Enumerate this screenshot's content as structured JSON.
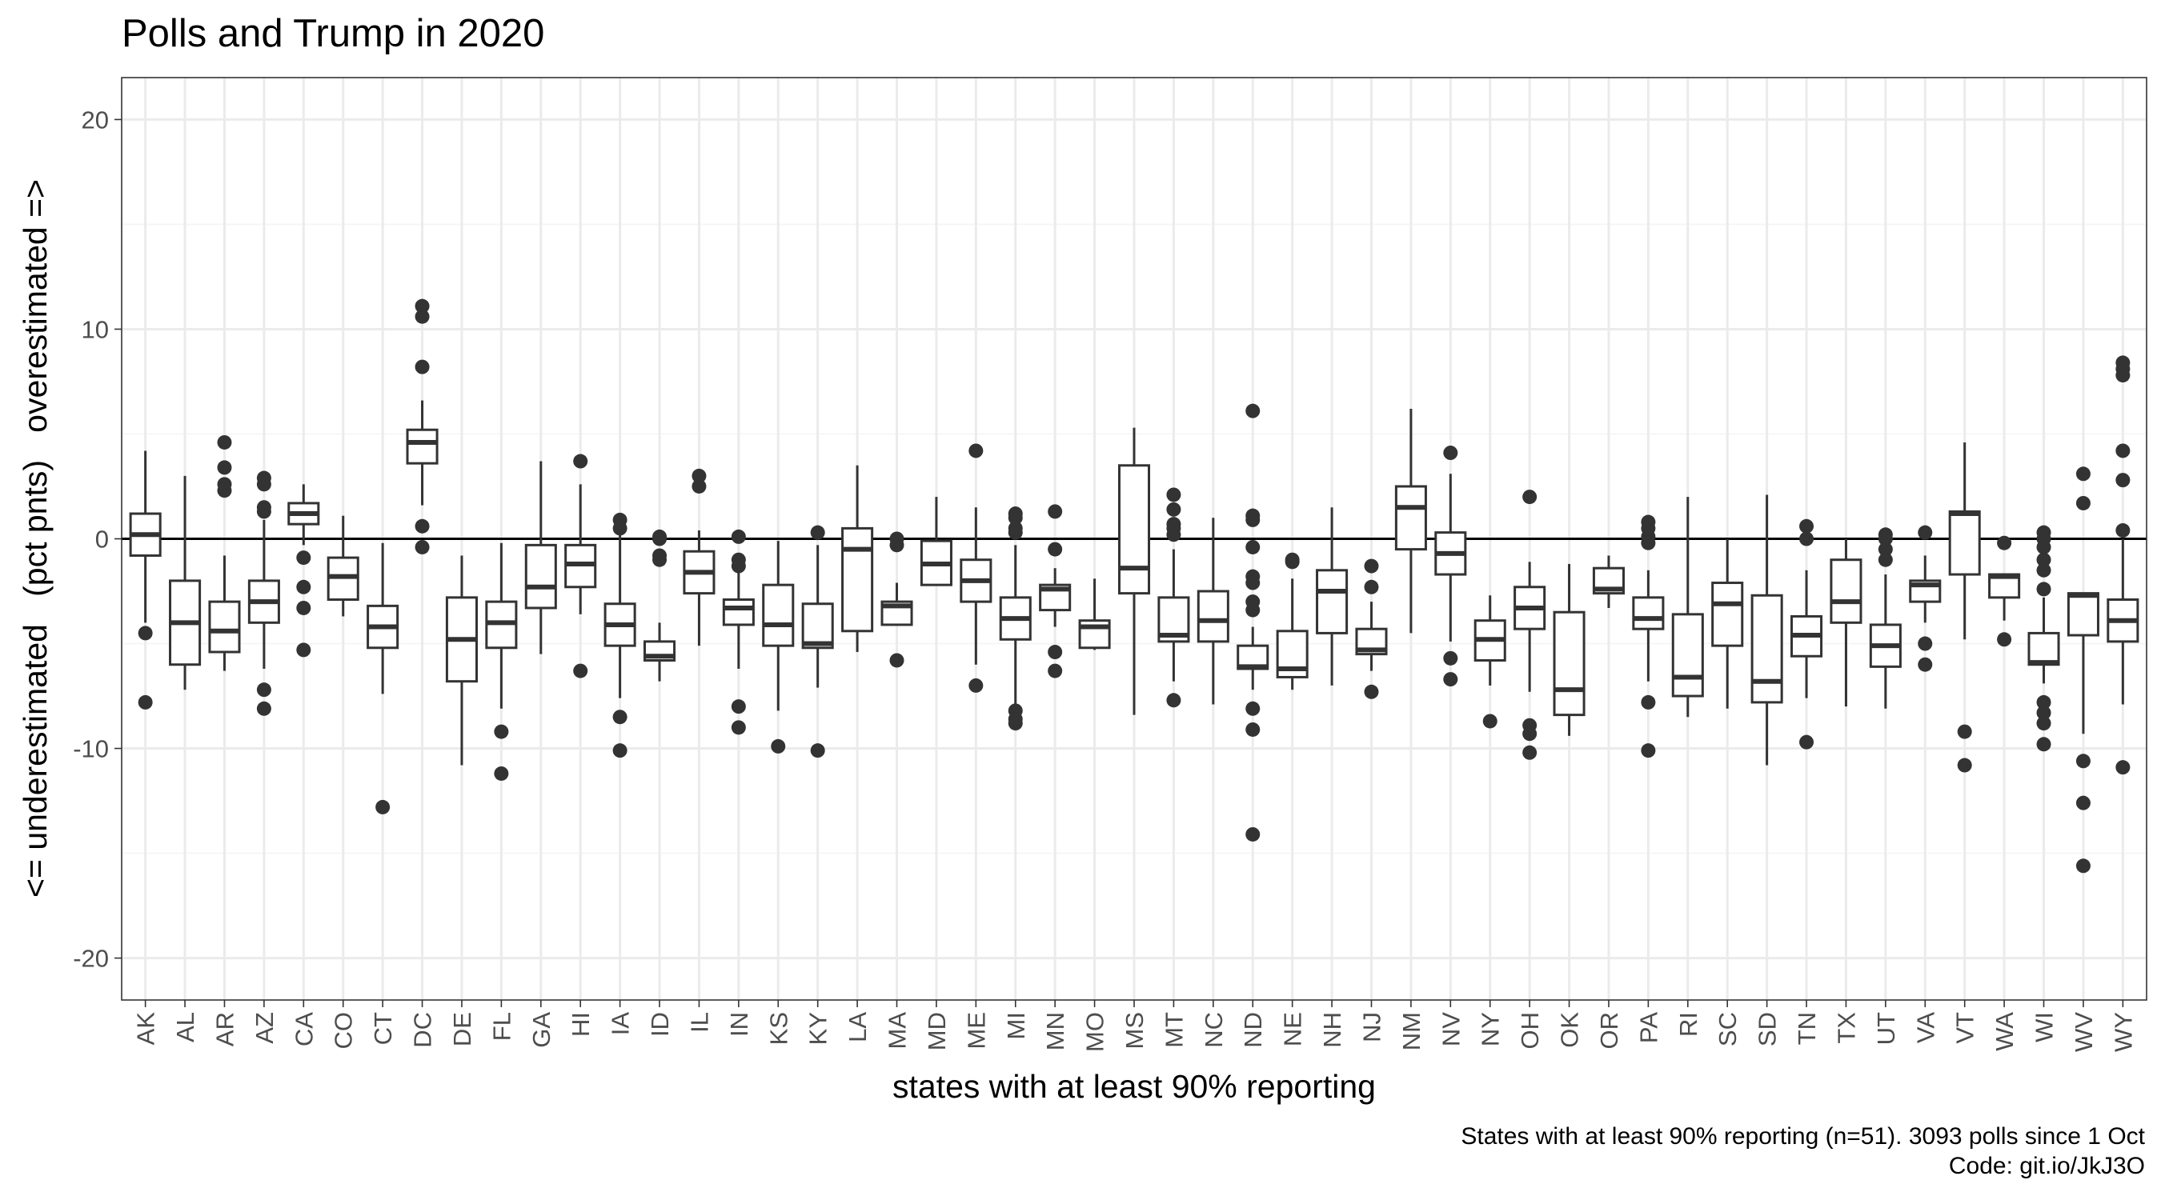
{
  "chart_data": {
    "type": "boxplot",
    "title": "Polls and Trump in 2020",
    "xlabel": "states with at least 90% reporting",
    "ylabel": "<= underestimated   (pct pnts)   overestimated =>",
    "caption_line1": "States with at least 90% reporting (n=51). 3093 polls since 1 Oct",
    "caption_line2": "Code: git.io/JkJ3O",
    "ylim": [
      -22,
      22
    ],
    "yticks": [
      -20,
      -10,
      0,
      10,
      20
    ],
    "ytick_labels": [
      "-20",
      "-10",
      "0",
      "10",
      "20"
    ],
    "reference_line": 0,
    "grid": true,
    "legend": "none",
    "colors": {
      "box_stroke": "#333333",
      "box_fill": "#ffffff",
      "grid_major": "#ebebeb",
      "grid_minor": "#f5f5f5",
      "panel_border": "#333333",
      "text": "#000000",
      "tick_text": "#4d4d4d"
    },
    "boxes": [
      {
        "state": "AK",
        "lw": -4,
        "q1": -0.8,
        "med": 0.2,
        "q3": 1.2,
        "uw": 4.2,
        "out": [
          -4.5,
          -7.8
        ]
      },
      {
        "state": "AL",
        "lw": -7.2,
        "q1": -6,
        "med": -4,
        "q3": -2,
        "uw": 3,
        "out": []
      },
      {
        "state": "AR",
        "lw": -6.3,
        "q1": -5.4,
        "med": -4.4,
        "q3": -3,
        "uw": -0.8,
        "out": [
          2.3,
          2.6,
          3.4,
          4.6
        ]
      },
      {
        "state": "AZ",
        "lw": -6.2,
        "q1": -4,
        "med": -3,
        "q3": -2,
        "uw": 0.9,
        "out": [
          1.3,
          1.5,
          2.6,
          2.9,
          -7.2,
          -8.1
        ]
      },
      {
        "state": "CA",
        "lw": -0.3,
        "q1": 0.7,
        "med": 1.2,
        "q3": 1.7,
        "uw": 2.6,
        "out": [
          -0.9,
          -2.3,
          -3.3,
          -5.3
        ]
      },
      {
        "state": "CO",
        "lw": -3.7,
        "q1": -2.9,
        "med": -1.8,
        "q3": -0.9,
        "uw": 1.1,
        "out": []
      },
      {
        "state": "CT",
        "lw": -7.4,
        "q1": -5.2,
        "med": -4.2,
        "q3": -3.2,
        "uw": -0.2,
        "out": [
          -12.8
        ]
      },
      {
        "state": "DC",
        "lw": 1.6,
        "q1": 3.6,
        "med": 4.6,
        "q3": 5.2,
        "uw": 6.6,
        "out": [
          8.2,
          10.6,
          11.1,
          0.6,
          -0.4
        ]
      },
      {
        "state": "DE",
        "lw": -10.8,
        "q1": -6.8,
        "med": -4.8,
        "q3": -2.8,
        "uw": -0.8,
        "out": []
      },
      {
        "state": "FL",
        "lw": -8.1,
        "q1": -5.2,
        "med": -4,
        "q3": -3,
        "uw": -0.2,
        "out": [
          -9.2,
          -11.2
        ]
      },
      {
        "state": "GA",
        "lw": -5.5,
        "q1": -3.3,
        "med": -2.3,
        "q3": -0.3,
        "uw": 3.7,
        "out": []
      },
      {
        "state": "HI",
        "lw": -3.6,
        "q1": -2.3,
        "med": -1.2,
        "q3": -0.3,
        "uw": 2.6,
        "out": [
          3.7,
          -6.3
        ]
      },
      {
        "state": "IA",
        "lw": -7.6,
        "q1": -5.1,
        "med": -4.1,
        "q3": -3.1,
        "uw": 0.2,
        "out": [
          0.5,
          0.9,
          -8.5,
          -10.1
        ]
      },
      {
        "state": "ID",
        "lw": -6.8,
        "q1": -5.8,
        "med": -5.6,
        "q3": -4.9,
        "uw": -4,
        "out": [
          0,
          0.1,
          -0.8,
          -1
        ]
      },
      {
        "state": "IL",
        "lw": -5.1,
        "q1": -2.6,
        "med": -1.6,
        "q3": -0.6,
        "uw": 0.4,
        "out": [
          2.5,
          3
        ]
      },
      {
        "state": "IN",
        "lw": -6.2,
        "q1": -4.1,
        "med": -3.3,
        "q3": -2.9,
        "uw": -0.8,
        "out": [
          0.1,
          -1,
          -1.3,
          -8,
          -9
        ]
      },
      {
        "state": "KS",
        "lw": -8.2,
        "q1": -5.1,
        "med": -4.1,
        "q3": -2.2,
        "uw": -0.1,
        "out": [
          -9.9
        ]
      },
      {
        "state": "KY",
        "lw": -7.1,
        "q1": -5.2,
        "med": -5,
        "q3": -3.1,
        "uw": -0.3,
        "out": [
          0.3,
          -10.1
        ]
      },
      {
        "state": "LA",
        "lw": -5.4,
        "q1": -4.4,
        "med": -0.5,
        "q3": 0.5,
        "uw": 3.5,
        "out": []
      },
      {
        "state": "MA",
        "lw": -4.1,
        "q1": -4.1,
        "med": -3.2,
        "q3": -3,
        "uw": -2.1,
        "out": [
          0,
          -0.3,
          -5.8
        ]
      },
      {
        "state": "MD",
        "lw": -2.2,
        "q1": -2.2,
        "med": -1.2,
        "q3": -0.1,
        "uw": 2,
        "out": []
      },
      {
        "state": "ME",
        "lw": -6,
        "q1": -3,
        "med": -2,
        "q3": -1,
        "uw": 1.5,
        "out": [
          4.2,
          -7
        ]
      },
      {
        "state": "MI",
        "lw": -8,
        "q1": -4.8,
        "med": -3.8,
        "q3": -2.8,
        "uw": -0.3,
        "out": [
          0.3,
          0.5,
          1,
          1.2,
          -8.2,
          -8.6,
          -8.8
        ]
      },
      {
        "state": "MN",
        "lw": -4.2,
        "q1": -3.4,
        "med": -2.4,
        "q3": -2.2,
        "uw": -1.4,
        "out": [
          1.3,
          -0.5,
          -5.4,
          -6.3
        ]
      },
      {
        "state": "MO",
        "lw": -5.3,
        "q1": -5.2,
        "med": -4.2,
        "q3": -3.9,
        "uw": -1.9,
        "out": []
      },
      {
        "state": "MS",
        "lw": -8.4,
        "q1": -2.6,
        "med": -1.4,
        "q3": 3.5,
        "uw": 5.3,
        "out": []
      },
      {
        "state": "MT",
        "lw": -6.8,
        "q1": -4.9,
        "med": -4.6,
        "q3": -2.8,
        "uw": -0.5,
        "out": [
          0.2,
          0.5,
          0.7,
          1.4,
          2.1,
          -7.7
        ]
      },
      {
        "state": "NC",
        "lw": -7.9,
        "q1": -4.9,
        "med": -3.9,
        "q3": -2.5,
        "uw": 1,
        "out": []
      },
      {
        "state": "ND",
        "lw": -7.2,
        "q1": -6.2,
        "med": -6.1,
        "q3": -5.1,
        "uw": -4.2,
        "out": [
          6.1,
          1.1,
          0.9,
          -0.4,
          -1.8,
          -2.1,
          -3,
          -3.4,
          -8.1,
          -9.1,
          -14.1
        ]
      },
      {
        "state": "NE",
        "lw": -7.2,
        "q1": -6.6,
        "med": -6.2,
        "q3": -4.4,
        "uw": -1.9,
        "out": [
          -1,
          -1.1
        ]
      },
      {
        "state": "NH",
        "lw": -7,
        "q1": -4.5,
        "med": -2.5,
        "q3": -1.5,
        "uw": 1.5,
        "out": []
      },
      {
        "state": "NJ",
        "lw": -6.3,
        "q1": -5.5,
        "med": -5.3,
        "q3": -4.3,
        "uw": -3,
        "out": [
          -1.3,
          -2.3,
          -7.3
        ]
      },
      {
        "state": "NM",
        "lw": -4.5,
        "q1": -0.5,
        "med": 1.5,
        "q3": 2.5,
        "uw": 6.2,
        "out": []
      },
      {
        "state": "NV",
        "lw": -4.9,
        "q1": -1.7,
        "med": -0.7,
        "q3": 0.3,
        "uw": 3.1,
        "out": [
          4.1,
          -5.7,
          -6.7
        ]
      },
      {
        "state": "NY",
        "lw": -7,
        "q1": -5.8,
        "med": -4.8,
        "q3": -3.9,
        "uw": -2.7,
        "out": [
          -8.7
        ]
      },
      {
        "state": "OH",
        "lw": -7.3,
        "q1": -4.3,
        "med": -3.3,
        "q3": -2.3,
        "uw": -1.1,
        "out": [
          2,
          -8.9,
          -9.3,
          -10.2
        ]
      },
      {
        "state": "OK",
        "lw": -9.4,
        "q1": -8.4,
        "med": -7.2,
        "q3": -3.5,
        "uw": -1.2,
        "out": []
      },
      {
        "state": "OR",
        "lw": -3.3,
        "q1": -2.6,
        "med": -2.4,
        "q3": -1.4,
        "uw": -0.8,
        "out": []
      },
      {
        "state": "PA",
        "lw": -6.8,
        "q1": -4.3,
        "med": -3.8,
        "q3": -2.8,
        "uw": -1.5,
        "out": [
          0.8,
          0.5,
          0.1,
          -0.2,
          -7.8,
          -10.1
        ]
      },
      {
        "state": "RI",
        "lw": -8.5,
        "q1": -7.5,
        "med": -6.6,
        "q3": -3.6,
        "uw": 2,
        "out": []
      },
      {
        "state": "SC",
        "lw": -8.1,
        "q1": -5.1,
        "med": -3.1,
        "q3": -2.1,
        "uw": 0,
        "out": []
      },
      {
        "state": "SD",
        "lw": -10.8,
        "q1": -7.8,
        "med": -6.8,
        "q3": -2.7,
        "uw": 2.1,
        "out": []
      },
      {
        "state": "TN",
        "lw": -7.6,
        "q1": -5.6,
        "med": -4.6,
        "q3": -3.7,
        "uw": -1.5,
        "out": [
          0.6,
          0,
          -9.7
        ]
      },
      {
        "state": "TX",
        "lw": -8,
        "q1": -4,
        "med": -3,
        "q3": -1,
        "uw": 0,
        "out": []
      },
      {
        "state": "UT",
        "lw": -8.1,
        "q1": -6.1,
        "med": -5.1,
        "q3": -4.1,
        "uw": -1.7,
        "out": [
          0.2,
          0,
          -0.5,
          -1
        ]
      },
      {
        "state": "VA",
        "lw": -4,
        "q1": -3,
        "med": -2.2,
        "q3": -2,
        "uw": -0.8,
        "out": [
          0.3,
          -5,
          -6
        ]
      },
      {
        "state": "VT",
        "lw": -4.8,
        "q1": -1.7,
        "med": 1.2,
        "q3": 1.3,
        "uw": 4.6,
        "out": [
          -9.2,
          -10.8
        ]
      },
      {
        "state": "WA",
        "lw": -3.9,
        "q1": -2.8,
        "med": -1.8,
        "q3": -1.7,
        "uw": -1.7,
        "out": [
          -0.2,
          -4.8
        ]
      },
      {
        "state": "WI",
        "lw": -6.9,
        "q1": -6,
        "med": -5.9,
        "q3": -4.5,
        "uw": -2.8,
        "out": [
          0.3,
          0,
          -0.4,
          -1,
          -1.5,
          -2.4,
          -7.8,
          -8.3,
          -8.8,
          -9.8
        ]
      },
      {
        "state": "WV",
        "lw": -9.3,
        "q1": -4.6,
        "med": -2.7,
        "q3": -2.6,
        "uw": -2.6,
        "out": [
          3.1,
          1.7,
          -10.6,
          -12.6,
          -15.6
        ]
      },
      {
        "state": "WY",
        "lw": -7.9,
        "q1": -4.9,
        "med": -3.9,
        "q3": -2.9,
        "uw": 0,
        "out": [
          8.4,
          8.1,
          7.8,
          4.2,
          2.8,
          0.4,
          -10.9
        ]
      }
    ]
  }
}
